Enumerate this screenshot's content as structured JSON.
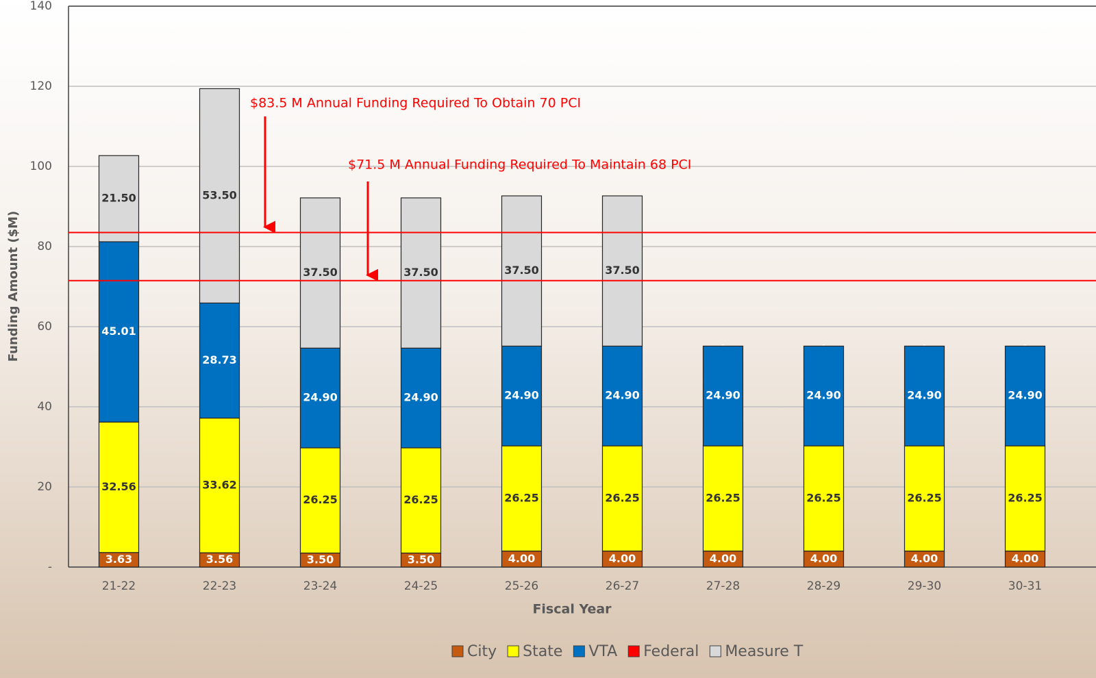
{
  "chart_data": {
    "type": "stacked_bar",
    "y_label": "Funding Amount ($M)",
    "x_label": "Fiscal Year",
    "categories": [
      "21-22",
      "22-23",
      "23-24",
      "24-25",
      "25-26",
      "26-27",
      "27-28",
      "28-29",
      "29-30",
      "30-31"
    ],
    "series": [
      {
        "name": "City",
        "color": "#c55a11",
        "label_color": "#ffffff",
        "values": [
          3.63,
          3.56,
          3.5,
          3.5,
          4,
          4,
          4,
          4,
          4,
          4
        ],
        "value_labels": [
          "3.63",
          "3.56",
          "3.50",
          "3.50",
          "4.00",
          "4.00",
          "4.00",
          "4.00",
          "4.00",
          "4.00"
        ]
      },
      {
        "name": "State",
        "color": "#ffff00",
        "label_color": "#333333",
        "values": [
          32.56,
          33.62,
          26.25,
          26.25,
          26.25,
          26.25,
          26.25,
          26.25,
          26.25,
          26.25
        ],
        "value_labels": [
          "32.56",
          "33.62",
          "26.25",
          "26.25",
          "26.25",
          "26.25",
          "26.25",
          "26.25",
          "26.25",
          "26.25"
        ]
      },
      {
        "name": "VTA",
        "color": "#0070c0",
        "label_color": "#ffffff",
        "values": [
          45.01,
          28.73,
          24.9,
          24.9,
          24.9,
          24.9,
          24.9,
          24.9,
          24.9,
          24.9
        ],
        "value_labels": [
          "45.01",
          "28.73",
          "24.90",
          "24.90",
          "24.90",
          "24.90",
          "24.90",
          "24.90",
          "24.90",
          "24.90"
        ]
      },
      {
        "name": "Federal",
        "color": "#ff0000",
        "label_color": "#ffffff",
        "values": [
          0,
          0,
          0,
          0,
          0,
          0,
          0,
          0,
          0,
          0
        ],
        "value_labels": [
          "-",
          "-",
          "-",
          "-",
          "-",
          "-",
          "-",
          "-",
          "-",
          "-"
        ]
      },
      {
        "name": "Measure T",
        "color": "#d9d9d9",
        "label_color": "#333333",
        "values": [
          21.5,
          53.5,
          37.5,
          37.5,
          37.5,
          37.5,
          null,
          null,
          null,
          null
        ],
        "value_labels": [
          "21.50",
          "53.50",
          "37.50",
          "37.50",
          "37.50",
          "37.50",
          null,
          null,
          null,
          null
        ]
      }
    ],
    "reference_lines": [
      {
        "value": 83.5,
        "label": "$83.5 M Annual Funding Required To Obtain 70 PCI",
        "color": "#ff0000"
      },
      {
        "value": 71.5,
        "label": "$71.5 M Annual Funding Required To Maintain 68 PCI",
        "color": "#ff0000"
      }
    ],
    "ylim": [
      0,
      140
    ],
    "yticks": [
      {
        "value": 0,
        "label": "-"
      },
      20,
      40,
      60,
      80,
      100,
      120,
      140
    ],
    "grid": true,
    "legend": "bottom"
  }
}
